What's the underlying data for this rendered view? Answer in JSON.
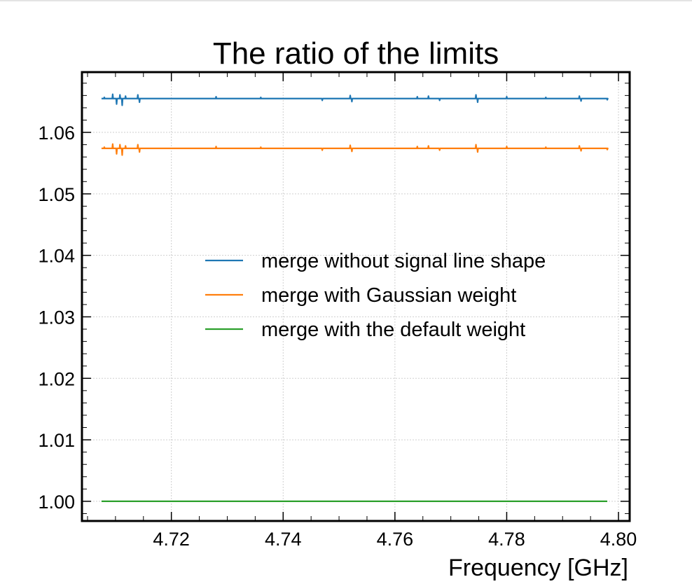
{
  "chart_data": {
    "type": "line",
    "title": "The ratio of the limits",
    "xlabel": "Frequency [GHz]",
    "ylabel": "",
    "xlim": [
      4.704,
      4.802
    ],
    "ylim": [
      0.9968,
      1.0698
    ],
    "grid": true,
    "legend_position": "center-right",
    "x_ticks": [
      "4.72",
      "4.74",
      "4.76",
      "4.78",
      "4.80"
    ],
    "x_tick_values": [
      4.72,
      4.74,
      4.76,
      4.78,
      4.8
    ],
    "y_ticks": [
      "1.00",
      "1.01",
      "1.02",
      "1.03",
      "1.04",
      "1.05",
      "1.06"
    ],
    "y_tick_values": [
      1.0,
      1.01,
      1.02,
      1.03,
      1.04,
      1.05,
      1.06
    ],
    "x_range": [
      4.7075,
      4.798
    ],
    "series": [
      {
        "name": " merge without signal line shape",
        "color": "#1f77b4",
        "base": 1.0655,
        "spikes": [
          [
            4.708,
            0.0002
          ],
          [
            4.7095,
            0.0007
          ],
          [
            4.7102,
            -0.0009
          ],
          [
            4.7108,
            0.0006
          ],
          [
            4.7112,
            -0.0011
          ],
          [
            4.7118,
            0.0004
          ],
          [
            4.714,
            0.0006
          ],
          [
            4.7143,
            -0.0006
          ],
          [
            4.728,
            0.0003
          ],
          [
            4.736,
            0.0002
          ],
          [
            4.747,
            -0.0003
          ],
          [
            4.752,
            0.0005
          ],
          [
            4.7523,
            -0.0005
          ],
          [
            4.764,
            0.0003
          ],
          [
            4.766,
            0.0004
          ],
          [
            4.768,
            -0.0003
          ],
          [
            4.7745,
            0.0006
          ],
          [
            4.7748,
            -0.0006
          ],
          [
            4.78,
            0.0003
          ],
          [
            4.787,
            0.0002
          ],
          [
            4.793,
            0.0004
          ],
          [
            4.7933,
            -0.0004
          ],
          [
            4.798,
            -0.0002
          ]
        ]
      },
      {
        "name": "merge with Gaussian weight",
        "color": "#ff7f0e",
        "base": 1.0574,
        "spikes": [
          [
            4.708,
            0.0002
          ],
          [
            4.7095,
            0.0007
          ],
          [
            4.7102,
            -0.0009
          ],
          [
            4.7108,
            0.0006
          ],
          [
            4.7112,
            -0.0011
          ],
          [
            4.7118,
            0.0004
          ],
          [
            4.714,
            0.0006
          ],
          [
            4.7143,
            -0.0006
          ],
          [
            4.728,
            0.0003
          ],
          [
            4.736,
            0.0002
          ],
          [
            4.747,
            -0.0003
          ],
          [
            4.752,
            0.0005
          ],
          [
            4.7523,
            -0.0005
          ],
          [
            4.764,
            0.0003
          ],
          [
            4.766,
            0.0004
          ],
          [
            4.768,
            -0.0003
          ],
          [
            4.7745,
            0.0006
          ],
          [
            4.7748,
            -0.0006
          ],
          [
            4.78,
            0.0003
          ],
          [
            4.787,
            0.0002
          ],
          [
            4.793,
            0.0004
          ],
          [
            4.7933,
            -0.0004
          ],
          [
            4.798,
            -0.0002
          ]
        ]
      },
      {
        "name": "merge with the default weight",
        "color": "#2ca02c",
        "base": 1.0,
        "spikes": []
      }
    ]
  }
}
